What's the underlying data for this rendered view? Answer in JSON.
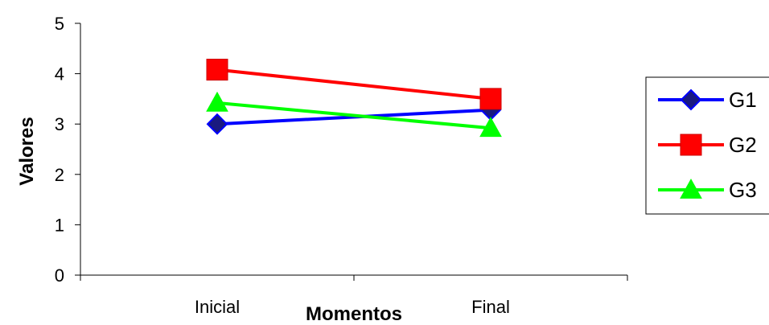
{
  "chart_data": {
    "type": "line",
    "title": "",
    "xlabel": "Momentos",
    "ylabel": "Valores",
    "categories": [
      "Inicial",
      "Final"
    ],
    "ylim": [
      0,
      5
    ],
    "yticks": [
      0,
      1,
      2,
      3,
      4,
      5
    ],
    "grid": false,
    "legend_position": "right",
    "series": [
      {
        "name": "G1",
        "values": [
          3.0,
          3.28
        ],
        "color": "#0000ff",
        "marker": "diamond",
        "marker_fill": "#1a1a80"
      },
      {
        "name": "G2",
        "values": [
          4.08,
          3.5
        ],
        "color": "#ff0000",
        "marker": "square",
        "marker_fill": "#ff0000"
      },
      {
        "name": "G3",
        "values": [
          3.42,
          2.92
        ],
        "color": "#00ff00",
        "marker": "triangle",
        "marker_fill": "#00ff00"
      }
    ]
  }
}
